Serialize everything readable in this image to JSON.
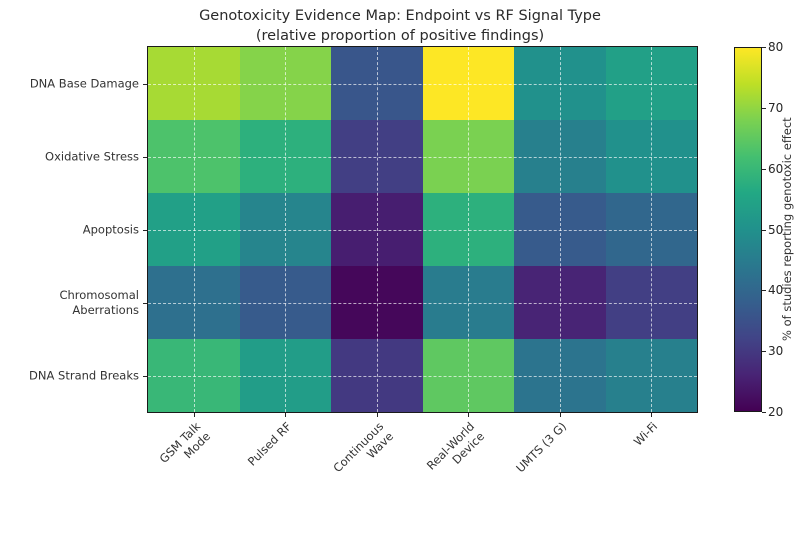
{
  "chart_data": {
    "type": "heatmap",
    "title": "Genotoxicity Evidence Map: Endpoint vs RF Signal Type",
    "subtitle": "(relative proportion of positive findings)",
    "x_categories": [
      "GSM Talk\nMode",
      "Pulsed RF",
      "Continuous\nWave",
      "Real-World\nDevice",
      "UMTS (3 G)",
      "Wi-Fi"
    ],
    "y_categories": [
      "DNA Base Damage",
      "Oxidative Stress",
      "Apoptosis",
      "Chromosomal\nAberrations",
      "DNA Strand Breaks"
    ],
    "values": [
      [
        72,
        69,
        36,
        80,
        50,
        54
      ],
      [
        63,
        58,
        31,
        68,
        46,
        50
      ],
      [
        54,
        47,
        25,
        58,
        37,
        40
      ],
      [
        42,
        37,
        21,
        45,
        26,
        31
      ],
      [
        60,
        53,
        30,
        65,
        43,
        46
      ]
    ],
    "grid": true,
    "colorbar": {
      "label": "% of studies reporting genotoxic effect",
      "min": 20,
      "max": 80,
      "ticks": [
        20,
        30,
        40,
        50,
        60,
        70,
        80
      ],
      "position": "right"
    },
    "colormap": {
      "name": "viridis",
      "stops": [
        "#440154",
        "#482475",
        "#414487",
        "#355f8d",
        "#2a788e",
        "#21918c",
        "#22a884",
        "#44bf70",
        "#7ad151",
        "#bddf26",
        "#fde725"
      ]
    }
  }
}
